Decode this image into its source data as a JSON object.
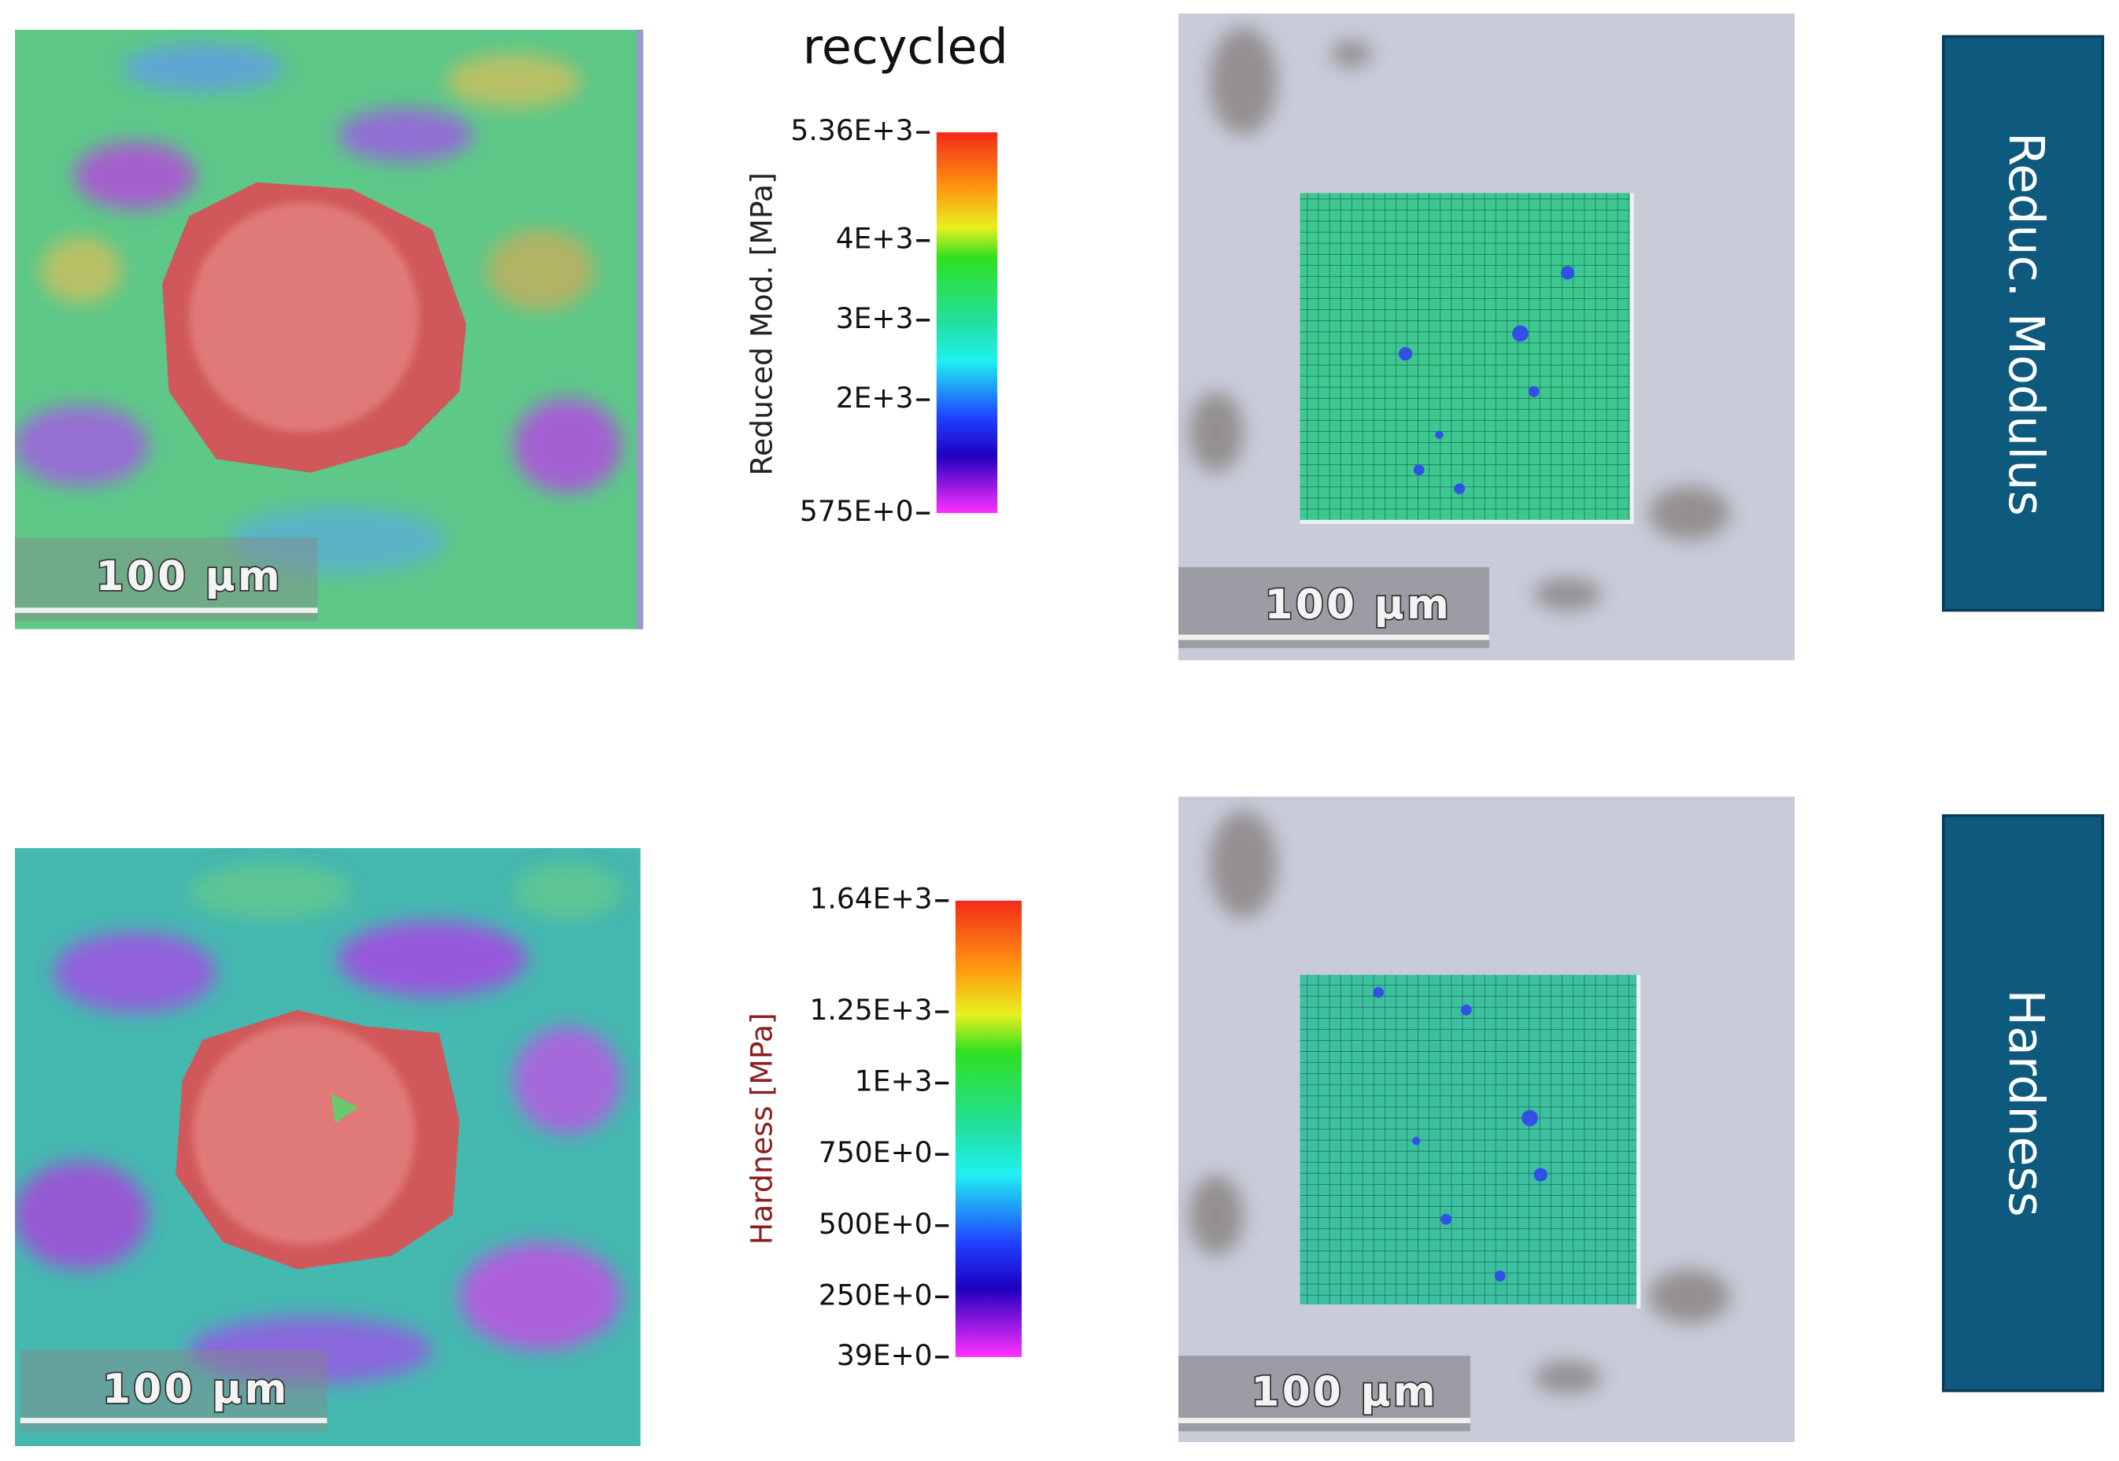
{
  "title": "recycled",
  "rows": [
    {
      "label": "Reduc. Modulus",
      "colorbar": {
        "axis_label": "Reduced Mod. [MPa]",
        "range": [
          575,
          5360
        ],
        "ticks": [
          {
            "value": 5360,
            "label": "5.36E+3"
          },
          {
            "value": 4000,
            "label": "4E+3"
          },
          {
            "value": 3000,
            "label": "3E+3"
          },
          {
            "value": 2000,
            "label": "2E+3"
          },
          {
            "value": 575,
            "label": "575E+0"
          }
        ]
      },
      "scale_bars": [
        "100 µm",
        "100 µm"
      ]
    },
    {
      "label": "Hardness",
      "colorbar": {
        "axis_label": "Hardness [MPa]",
        "range": [
          39,
          1640
        ],
        "ticks": [
          {
            "value": 1640,
            "label": "1.64E+3"
          },
          {
            "value": 1250,
            "label": "1.25E+3"
          },
          {
            "value": 1000,
            "label": "1E+3"
          },
          {
            "value": 750,
            "label": "750E+0"
          },
          {
            "value": 500,
            "label": "500E+0"
          },
          {
            "value": 250,
            "label": "250E+0"
          },
          {
            "value": 39,
            "label": "39E+0"
          }
        ]
      },
      "scale_bars": [
        "100 µm",
        "100 µm"
      ]
    }
  ]
}
